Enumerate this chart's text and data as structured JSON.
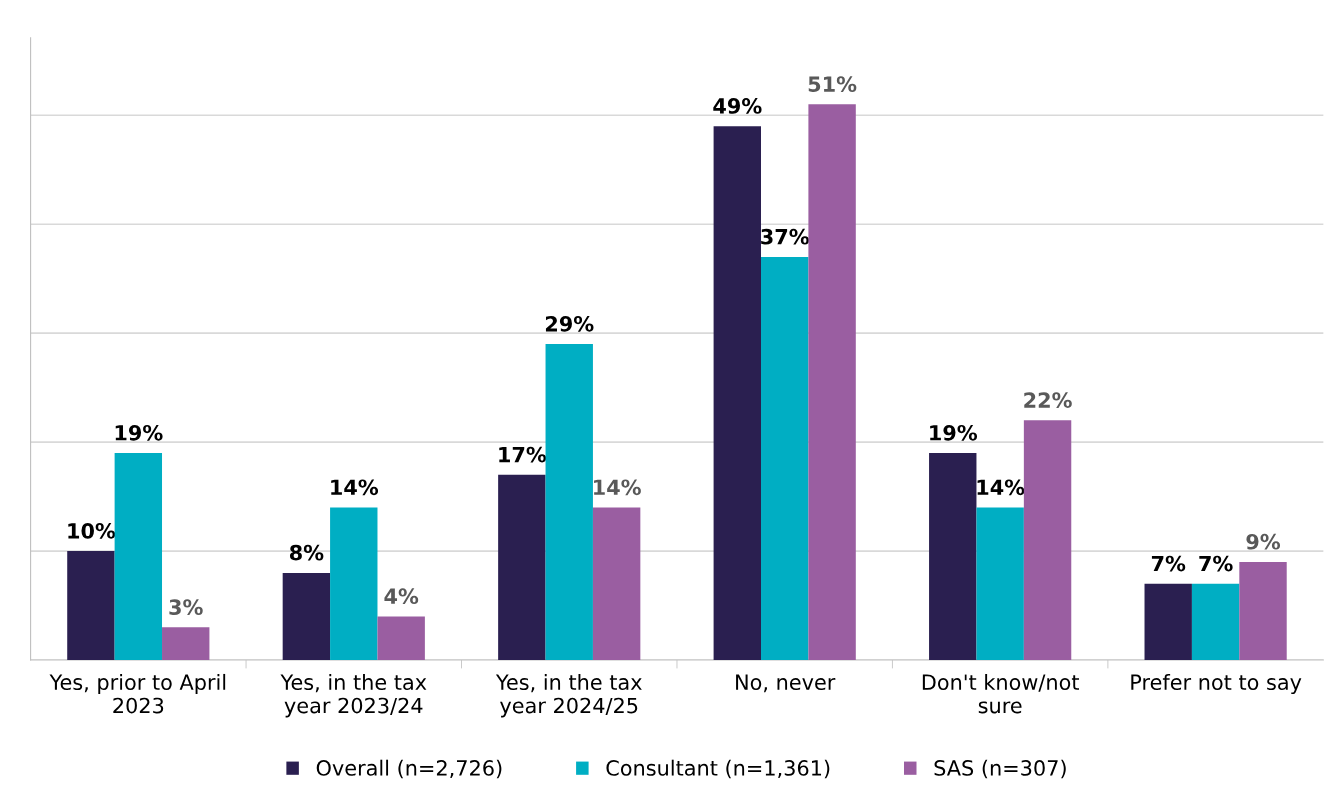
{
  "chart_data": {
    "type": "bar",
    "categories": [
      "Yes, prior to April\n2023",
      "Yes, in the tax\nyear 2023/24",
      "Yes, in the tax\nyear 2024/25",
      "No, never",
      "Don't know/not\nsure",
      "Prefer not to say"
    ],
    "series": [
      {
        "name": "Overall (n=2,726)",
        "color": "#2a1f50",
        "values": [
          10,
          8,
          17,
          49,
          19,
          7
        ],
        "value_labels": [
          "10%",
          "8%",
          "17%",
          "49%",
          "19%",
          "7%"
        ]
      },
      {
        "name": "Consultant (n=1,361)",
        "color": "#00aec3",
        "values": [
          19,
          14,
          29,
          37,
          14,
          7
        ],
        "value_labels": [
          "19%",
          "14%",
          "29%",
          "37%",
          "14%",
          "7%"
        ]
      },
      {
        "name": "SAS (n=307)",
        "color": "#9a5ea1",
        "values": [
          3,
          4,
          14,
          51,
          22,
          9
        ],
        "value_labels": [
          "3%",
          "4%",
          "14%",
          "51%",
          "22%",
          "9%"
        ]
      }
    ],
    "grid": "y",
    "legend": "bottom"
  }
}
